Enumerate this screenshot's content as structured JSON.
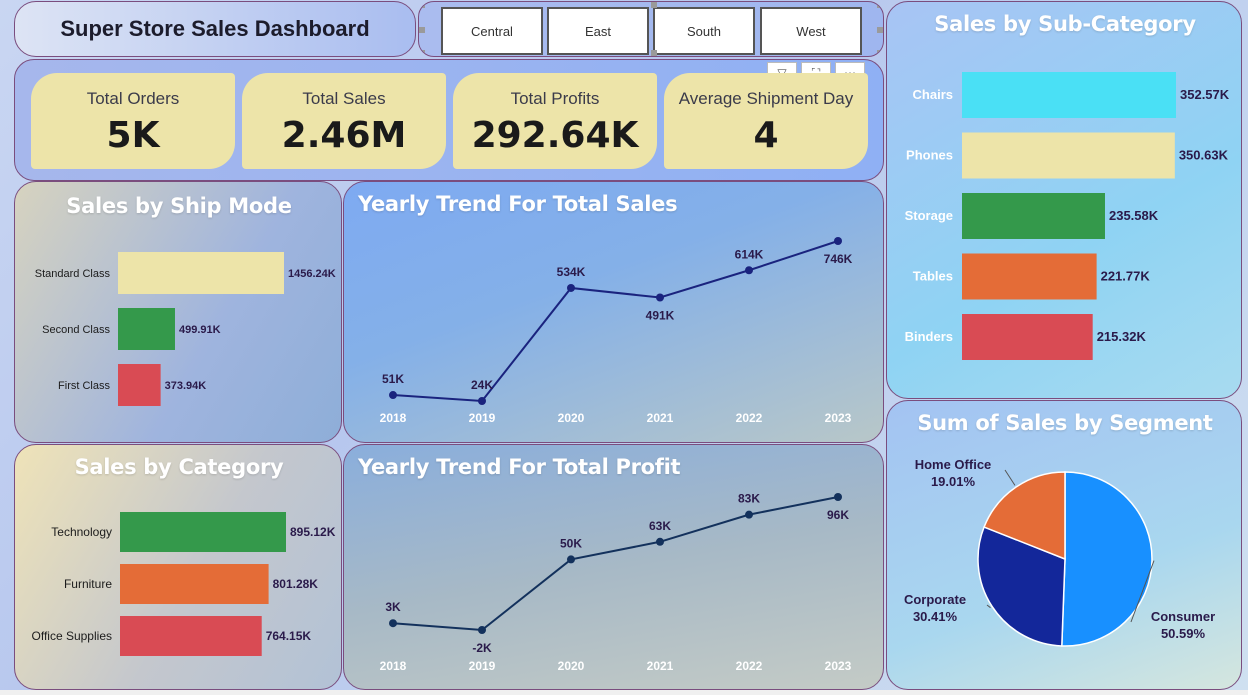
{
  "header": {
    "title": "Super Store Sales Dashboard"
  },
  "slicer": {
    "regions": [
      "Central",
      "East",
      "South",
      "West"
    ]
  },
  "kpis": [
    {
      "label": "Total Orders",
      "value": "5K"
    },
    {
      "label": "Total Sales",
      "value": "2.46M"
    },
    {
      "label": "Total Profits",
      "value": "292.64K"
    },
    {
      "label": "Average Shipment Day",
      "value": "4"
    }
  ],
  "colors": {
    "yellow": "#ede4a9",
    "green": "#34994b",
    "orange": "#e46c37",
    "red": "#d94b54",
    "cyan": "#4ae0f5",
    "navy": "#1a237e",
    "blue": "#1890ff",
    "darkblue": "#13279a"
  },
  "chart_data": [
    {
      "id": "ship_mode",
      "type": "bar",
      "title": "Sales by Ship Mode",
      "categories": [
        "Standard Class",
        "Second Class",
        "First Class"
      ],
      "values": [
        1456.24,
        499.91,
        373.94
      ],
      "labels": [
        "1456.24K",
        "499.91K",
        "373.94K"
      ],
      "colors": [
        "#ede4a9",
        "#34994b",
        "#d94b54"
      ]
    },
    {
      "id": "yearly_sales",
      "type": "line",
      "title": "Yearly Trend For Total Sales",
      "x": [
        "2018",
        "2019",
        "2020",
        "2021",
        "2022",
        "2023"
      ],
      "values": [
        51,
        24,
        534,
        491,
        614,
        746
      ],
      "labels": [
        "51K",
        "24K",
        "534K",
        "491K",
        "614K",
        "746K"
      ]
    },
    {
      "id": "sub_category",
      "type": "bar",
      "title": "Sales by Sub-Category",
      "categories": [
        "Chairs",
        "Phones",
        "Storage",
        "Tables",
        "Binders"
      ],
      "values": [
        352.57,
        350.63,
        235.58,
        221.77,
        215.32
      ],
      "labels": [
        "352.57K",
        "350.63K",
        "235.58K",
        "221.77K",
        "215.32K"
      ],
      "colors": [
        "#4ae0f5",
        "#ede4a9",
        "#34994b",
        "#e46c37",
        "#d94b54"
      ]
    },
    {
      "id": "category",
      "type": "bar",
      "title": "Sales by Category",
      "categories": [
        "Technology",
        "Furniture",
        "Office Supplies"
      ],
      "values": [
        895.12,
        801.28,
        764.15
      ],
      "labels": [
        "895.12K",
        "801.28K",
        "764.15K"
      ],
      "colors": [
        "#34994b",
        "#e46c37",
        "#d94b54"
      ]
    },
    {
      "id": "yearly_profit",
      "type": "line",
      "title": "Yearly Trend For Total Profit",
      "x": [
        "2018",
        "2019",
        "2020",
        "2021",
        "2022",
        "2023"
      ],
      "values": [
        3,
        -2,
        50,
        63,
        83,
        96
      ],
      "labels": [
        "3K",
        "-2K",
        "50K",
        "63K",
        "83K",
        "96K"
      ]
    },
    {
      "id": "segment",
      "type": "pie",
      "title": "Sum of Sales by Segment",
      "categories": [
        "Consumer",
        "Corporate",
        "Home Office"
      ],
      "values": [
        50.59,
        30.41,
        19.01
      ],
      "labels": [
        "50.59%",
        "30.41%",
        "19.01%"
      ],
      "colors": [
        "#1890ff",
        "#13279a",
        "#e46c37"
      ]
    }
  ]
}
